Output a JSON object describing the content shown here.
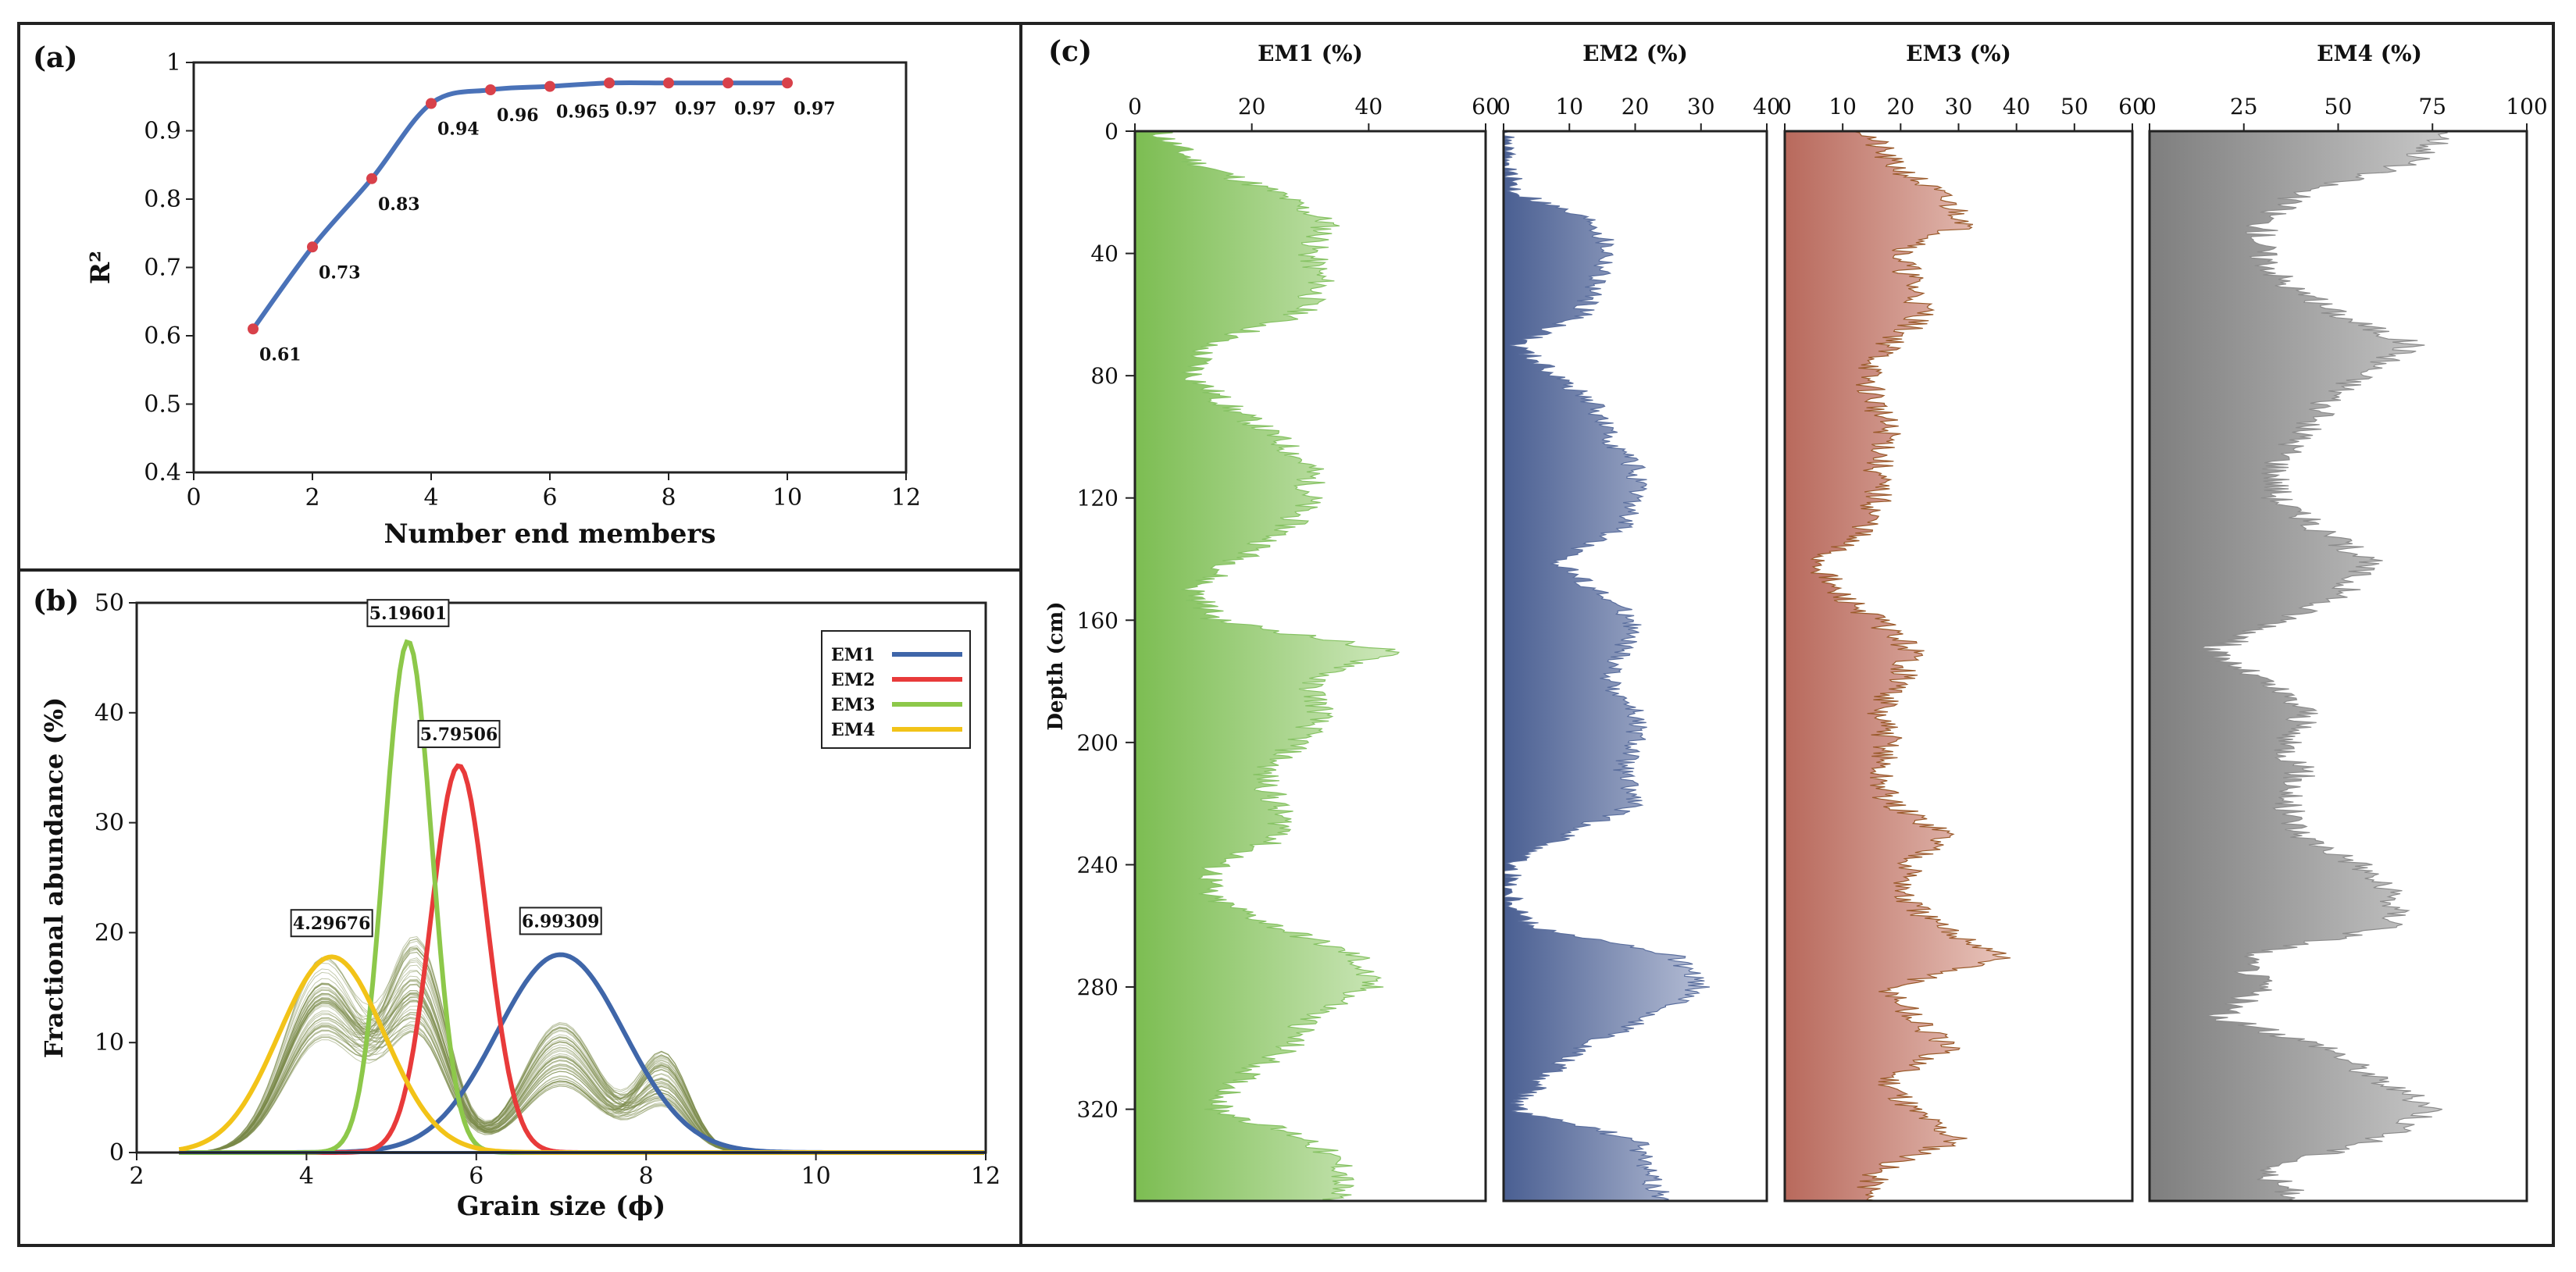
{
  "chart_data": [
    {
      "panel": "(a)",
      "type": "line",
      "xlabel": "Number end members",
      "ylabel": "R²",
      "xlim": [
        0,
        12
      ],
      "ylim": [
        0.4,
        1.0
      ],
      "xticks": [
        "0",
        "2",
        "4",
        "6",
        "8",
        "10",
        "12"
      ],
      "yticks": [
        "0.4",
        "0.5",
        "0.6",
        "0.7",
        "0.8",
        "0.9",
        "1"
      ],
      "x": [
        1,
        2,
        3,
        4,
        5,
        6,
        7,
        8,
        9,
        10
      ],
      "y": [
        0.61,
        0.73,
        0.83,
        0.94,
        0.96,
        0.965,
        0.97,
        0.97,
        0.97,
        0.97
      ],
      "point_labels": [
        "0.61",
        "0.73",
        "0.83",
        "0.94",
        "0.96",
        "0.965",
        "0.97",
        "0.97",
        "0.97",
        "0.97"
      ],
      "line_color": "#4a72b8",
      "marker_color": "#d8414a"
    },
    {
      "panel": "(b)",
      "type": "line",
      "xlabel": "Grain size (ϕ)",
      "ylabel": "Fractional abundance (%)",
      "xlim": [
        2,
        12
      ],
      "ylim": [
        0,
        50
      ],
      "xticks": [
        "2",
        "4",
        "6",
        "8",
        "10",
        "12"
      ],
      "yticks": [
        "0",
        "10",
        "20",
        "30",
        "40",
        "50"
      ],
      "legend": [
        {
          "name": "EM1",
          "color": "#3f66a9"
        },
        {
          "name": "EM2",
          "color": "#e83a3a"
        },
        {
          "name": "EM3",
          "color": "#8dc84a"
        },
        {
          "name": "EM4",
          "color": "#f2c318"
        }
      ],
      "series": [
        {
          "name": "EM1",
          "peak_x": 6.99309,
          "peak_y": 18.0,
          "sigma": 0.75
        },
        {
          "name": "EM2",
          "peak_x": 5.79506,
          "peak_y": 35.2,
          "sigma": 0.33
        },
        {
          "name": "EM3",
          "peak_x": 5.19601,
          "peak_y": 46.5,
          "sigma": 0.28
        },
        {
          "name": "EM4",
          "peak_x": 4.29676,
          "peak_y": 17.8,
          "sigma": 0.62
        }
      ],
      "peak_labels": [
        "5.19601",
        "5.79506",
        "4.29676",
        "6.99309"
      ],
      "background_color": "#7a8a4a"
    },
    {
      "panel": "(c)",
      "type": "area",
      "ylabel": "Depth (cm)",
      "ylim": [
        0,
        350
      ],
      "yticks": [
        "0",
        "40",
        "80",
        "120",
        "160",
        "200",
        "240",
        "280",
        "320"
      ],
      "tracks": [
        {
          "name": "EM1 (%)",
          "xlim": [
            0,
            60
          ],
          "xticks": [
            "0",
            "20",
            "40",
            "60"
          ],
          "color": "#86c263",
          "depth": [
            0,
            10,
            20,
            30,
            40,
            50,
            60,
            70,
            80,
            90,
            100,
            110,
            120,
            130,
            140,
            150,
            160,
            170,
            180,
            190,
            200,
            210,
            220,
            230,
            240,
            250,
            260,
            270,
            280,
            290,
            300,
            310,
            320,
            330,
            340,
            350
          ],
          "values": [
            4,
            10,
            24,
            33,
            30,
            32,
            28,
            12,
            10,
            16,
            24,
            30,
            30,
            26,
            18,
            10,
            14,
            44,
            30,
            32,
            28,
            22,
            24,
            26,
            14,
            12,
            24,
            38,
            40,
            30,
            26,
            18,
            14,
            30,
            36,
            34
          ]
        },
        {
          "name": "EM2 (%)",
          "xlim": [
            0,
            40
          ],
          "xticks": [
            "0",
            "10",
            "20",
            "30",
            "40"
          ],
          "color": "#5b6f9e",
          "depth": [
            0,
            10,
            20,
            30,
            40,
            50,
            60,
            70,
            80,
            90,
            100,
            110,
            120,
            130,
            140,
            150,
            160,
            170,
            180,
            190,
            200,
            210,
            220,
            230,
            240,
            250,
            260,
            270,
            280,
            290,
            300,
            310,
            320,
            330,
            340,
            350
          ],
          "values": [
            0,
            0,
            2,
            14,
            16,
            14,
            12,
            2,
            8,
            14,
            16,
            20,
            20,
            18,
            8,
            14,
            20,
            18,
            16,
            20,
            20,
            18,
            20,
            10,
            1,
            1,
            4,
            26,
            30,
            22,
            12,
            6,
            2,
            20,
            22,
            24
          ]
        },
        {
          "name": "EM3 (%)",
          "xlim": [
            0,
            60
          ],
          "xticks": [
            "0",
            "10",
            "20",
            "30",
            "40",
            "50",
            "60"
          ],
          "color": "#c1796c",
          "depth": [
            0,
            10,
            20,
            30,
            40,
            50,
            60,
            70,
            80,
            90,
            100,
            110,
            120,
            130,
            140,
            150,
            160,
            170,
            180,
            190,
            200,
            210,
            220,
            230,
            240,
            250,
            260,
            270,
            280,
            290,
            300,
            310,
            320,
            330,
            340,
            350
          ],
          "values": [
            14,
            18,
            26,
            32,
            20,
            22,
            24,
            18,
            14,
            16,
            18,
            16,
            16,
            14,
            6,
            8,
            16,
            22,
            20,
            16,
            18,
            16,
            18,
            28,
            22,
            20,
            26,
            38,
            18,
            22,
            28,
            18,
            22,
            30,
            16,
            14
          ],
          "marker_color": "#9a5a2a"
        },
        {
          "name": "EM4 (%)",
          "xlim": [
            0,
            100
          ],
          "xticks": [
            "0",
            "25",
            "50",
            "75",
            "100"
          ],
          "color": "#8c8c8c",
          "depth": [
            0,
            10,
            20,
            30,
            40,
            50,
            60,
            70,
            80,
            90,
            100,
            110,
            120,
            130,
            140,
            150,
            160,
            170,
            180,
            190,
            200,
            210,
            220,
            230,
            240,
            250,
            260,
            270,
            280,
            290,
            300,
            310,
            320,
            330,
            340,
            350
          ],
          "values": [
            80,
            70,
            40,
            30,
            30,
            36,
            50,
            70,
            56,
            46,
            40,
            34,
            34,
            44,
            58,
            52,
            36,
            16,
            30,
            42,
            36,
            40,
            36,
            40,
            56,
            64,
            66,
            24,
            30,
            18,
            48,
            60,
            76,
            60,
            30,
            40
          ]
        }
      ]
    }
  ]
}
